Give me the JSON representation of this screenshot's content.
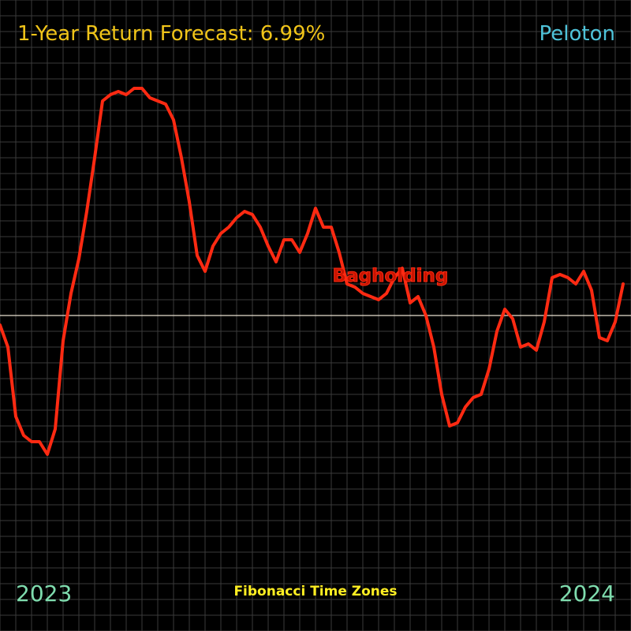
{
  "header": {
    "title": "1-Year Return Forecast: 6.99%",
    "ticker": "Peloton"
  },
  "footer": {
    "year_start": "2023",
    "year_end": "2024",
    "caption": "Fibonacci Time Zones"
  },
  "colors": {
    "background": "#000000",
    "grid": "#3a3a3a",
    "line": "#ff2a12",
    "baseline": "#e8e0d0",
    "title": "#f0c419",
    "ticker": "#4fc3d9",
    "year": "#7fdcae",
    "caption": "#ffee22"
  },
  "chart_data": {
    "type": "line",
    "title": "1-Year Return Forecast: 6.99%",
    "xlabel": "",
    "ylabel": "",
    "grid": true,
    "x_range": [
      "2023",
      "2024"
    ],
    "baseline": 0,
    "ylim": [
      -100,
      100
    ],
    "annotations": [
      {
        "text": "Bagholding",
        "x": 49.5,
        "y": 13
      }
    ],
    "series": [
      {
        "values": [
          -3,
          -10,
          -32,
          -38,
          -40,
          -40,
          -44,
          -36,
          -8,
          7,
          18,
          33,
          50,
          68,
          70,
          71,
          70,
          72,
          72,
          69,
          68,
          67,
          62,
          50,
          36,
          19,
          14,
          22,
          26,
          28,
          31,
          33,
          32,
          28,
          22,
          17,
          24,
          24,
          20,
          26,
          34,
          28,
          28,
          20,
          10,
          9,
          7,
          6,
          5,
          7,
          12,
          15,
          4,
          6,
          0,
          -10,
          -25,
          -35,
          -34,
          -29,
          -26,
          -25,
          -17,
          -5,
          2,
          -1,
          -10,
          -9,
          -11,
          -2,
          12,
          13,
          12,
          10,
          14,
          8,
          -7,
          -8,
          -2,
          10
        ]
      }
    ]
  }
}
